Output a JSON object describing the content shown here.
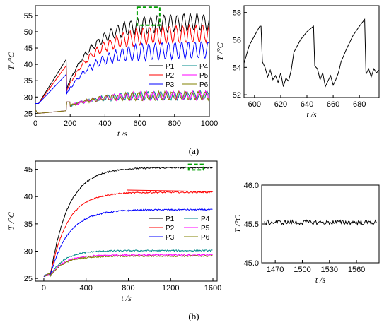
{
  "captions": {
    "a": "(a)",
    "b": "(b)"
  },
  "colors": {
    "P1": "#000000",
    "P2": "#ff0000",
    "P3": "#0000ff",
    "P4": "#008b8b",
    "P5": "#ff00ff",
    "P6": "#808000",
    "highlight": "#00a000"
  },
  "chart_data": [
    {
      "id": "a-main",
      "type": "line",
      "xlabel": "t /s",
      "ylabel": "T /°C",
      "xlim": [
        0,
        1000
      ],
      "ylim": [
        24,
        58
      ],
      "xticks": [
        0,
        200,
        400,
        600,
        800,
        1000
      ],
      "yticks": [
        25,
        30,
        35,
        40,
        45,
        50,
        55
      ],
      "legend": {
        "placement": "right-middle",
        "columns": 2,
        "order": [
          "P1",
          "P4",
          "P2",
          "P5",
          "P3",
          "P6"
        ]
      },
      "series": [
        {
          "name": "P1",
          "steady": 53,
          "amplitude": 2.5,
          "start": 28
        },
        {
          "name": "P2",
          "steady": 49.5,
          "amplitude": 2.5,
          "start": 28
        },
        {
          "name": "P3",
          "steady": 44.5,
          "amplitude": 2.5,
          "start": 28
        },
        {
          "name": "P4",
          "steady": 30.5,
          "amplitude": 1.2,
          "start": 26
        },
        {
          "name": "P5",
          "steady": 30.5,
          "amplitude": 1.2,
          "start": 26
        },
        {
          "name": "P6",
          "steady": 30.5,
          "amplitude": 1.2,
          "start": 26
        }
      ],
      "highlight": {
        "x": [
          585,
          715
        ],
        "y": [
          52,
          57.5
        ]
      }
    },
    {
      "id": "a-inset",
      "type": "line",
      "xlabel": "t /s",
      "ylabel": "T /°C",
      "xlim": [
        592,
        695
      ],
      "ylim": [
        51.8,
        58.5
      ],
      "xticks": [
        600,
        620,
        640,
        660,
        680
      ],
      "yticks": [
        52,
        54,
        56,
        58
      ],
      "series": [
        {
          "name": "P1",
          "points": [
            [
              592,
              54.3
            ],
            [
              596,
              55.6
            ],
            [
              600,
              56.3
            ],
            [
              604,
              57.0
            ],
            [
              605,
              57.0
            ],
            [
              606,
              54.4
            ],
            [
              608,
              54.0
            ],
            [
              610,
              53.3
            ],
            [
              612,
              53.8
            ],
            [
              614,
              53.1
            ],
            [
              616,
              53.4
            ],
            [
              618,
              52.9
            ],
            [
              620,
              53.6
            ],
            [
              622,
              52.6
            ],
            [
              624,
              53.2
            ],
            [
              626,
              53.0
            ],
            [
              628,
              53.8
            ],
            [
              630,
              55.1
            ],
            [
              635,
              56.0
            ],
            [
              640,
              56.6
            ],
            [
              645,
              57.0
            ],
            [
              646,
              54.1
            ],
            [
              648,
              53.9
            ],
            [
              650,
              53.1
            ],
            [
              652,
              53.6
            ],
            [
              654,
              52.6
            ],
            [
              656,
              53.0
            ],
            [
              658,
              53.4
            ],
            [
              660,
              52.7
            ],
            [
              662,
              53.1
            ],
            [
              664,
              53.6
            ],
            [
              666,
              54.4
            ],
            [
              670,
              55.3
            ],
            [
              675,
              56.3
            ],
            [
              680,
              57.0
            ],
            [
              684,
              57.5
            ],
            [
              685,
              53.5
            ],
            [
              687,
              53.9
            ],
            [
              689,
              53.3
            ],
            [
              691,
              53.9
            ],
            [
              693,
              53.6
            ],
            [
              695,
              53.8
            ]
          ]
        }
      ]
    },
    {
      "id": "b-main",
      "type": "line",
      "xlabel": "t /s",
      "ylabel": "T /°C",
      "xlim": [
        -80,
        1640
      ],
      "ylim": [
        24.5,
        46.5
      ],
      "xticks": [
        0,
        400,
        800,
        1200,
        1600
      ],
      "yticks": [
        25,
        30,
        35,
        40,
        45
      ],
      "legend": {
        "placement": "right-middle",
        "columns": 2,
        "order": [
          "P1",
          "P4",
          "P2",
          "P5",
          "P3",
          "P6"
        ]
      },
      "series": [
        {
          "name": "P1",
          "steady": 45.3,
          "start": 25.4,
          "tau": 170
        },
        {
          "name": "P2",
          "steady": 40.8,
          "start": 25.4,
          "tau": 160
        },
        {
          "name": "P3",
          "steady": 37.6,
          "start": 25.4,
          "tau": 170
        },
        {
          "name": "P4",
          "steady": 30.1,
          "start": 25.4,
          "tau": 130
        },
        {
          "name": "P5",
          "steady": 29.3,
          "start": 25.4,
          "tau": 130
        },
        {
          "name": "P6",
          "steady": 29.1,
          "start": 25.4,
          "tau": 130
        }
      ],
      "highlight": {
        "x": [
          1370,
          1510
        ],
        "y": [
          44.9,
          45.9
        ]
      }
    },
    {
      "id": "b-inset",
      "type": "line",
      "xlabel": "t /s",
      "ylabel": "T /°C",
      "xlim": [
        1455,
        1585
      ],
      "ylim": [
        45.0,
        46.0
      ],
      "xticks": [
        1470,
        1500,
        1530,
        1560
      ],
      "yticks": [
        45.0,
        45.5,
        46.0
      ],
      "series": [
        {
          "name": "P1",
          "steady": 45.52,
          "noise": 0.03
        }
      ]
    }
  ]
}
